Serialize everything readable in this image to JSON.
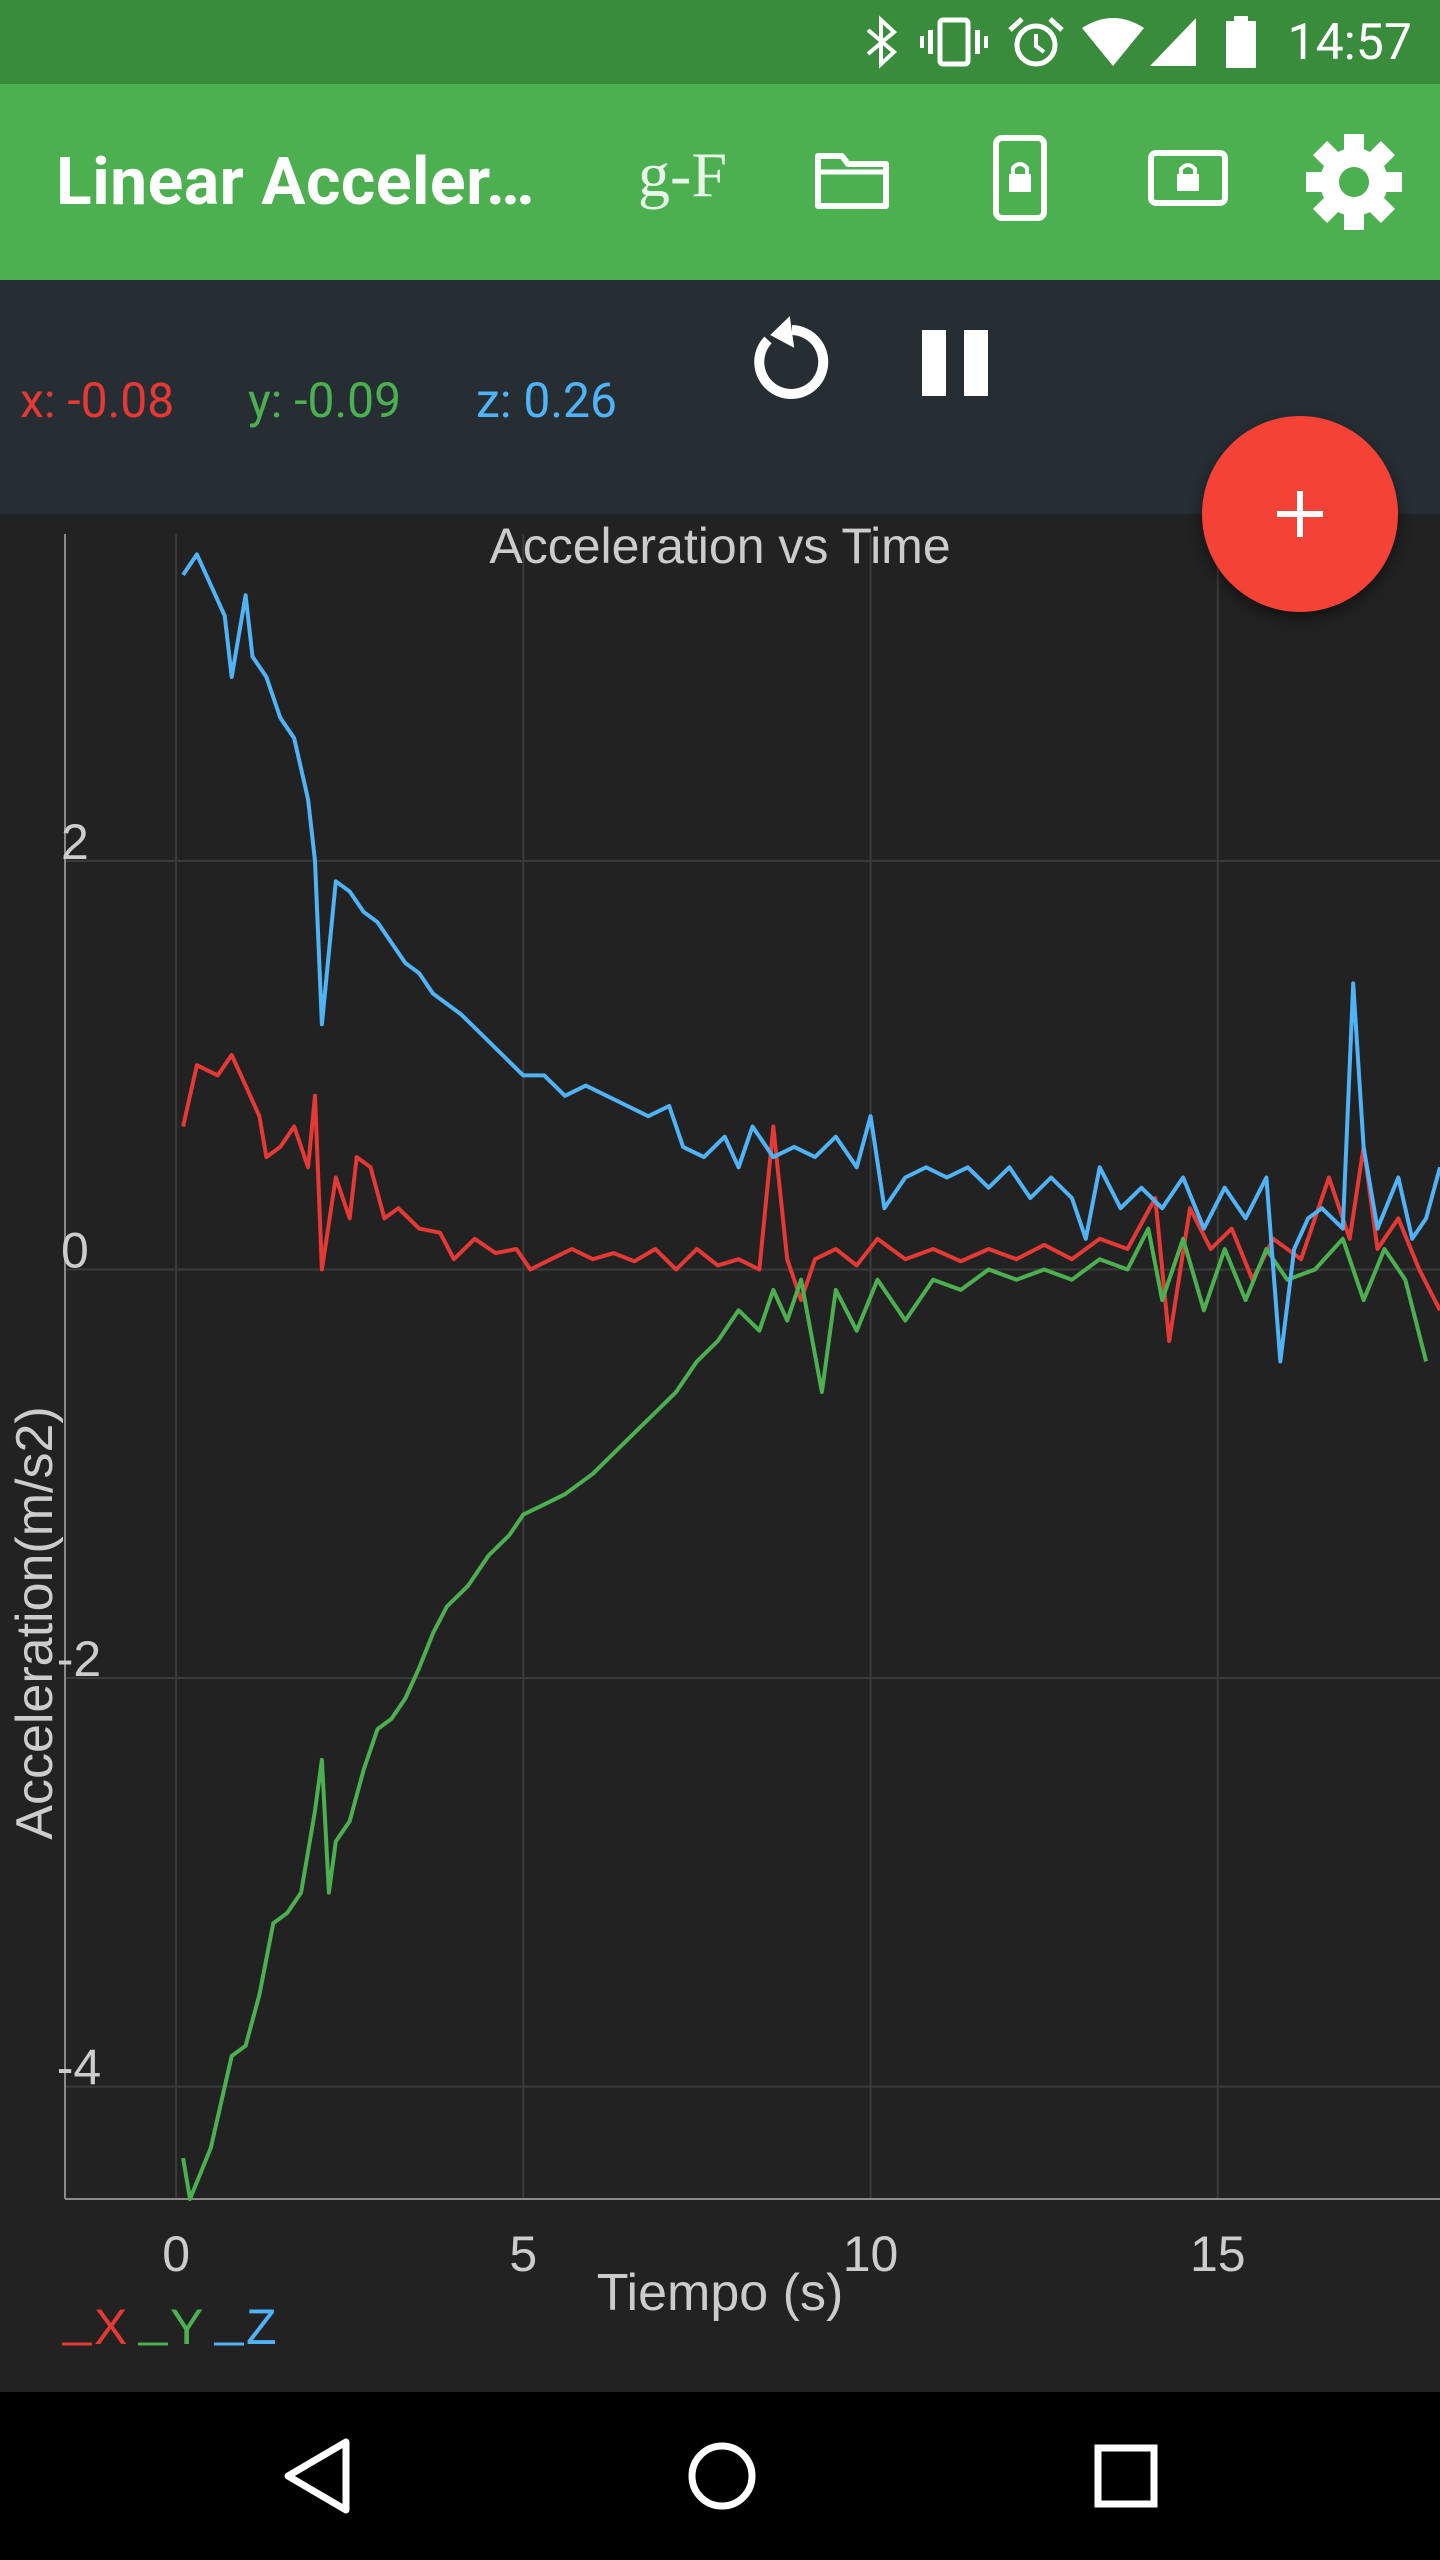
{
  "status_bar": {
    "time": "14:57",
    "icons": [
      "bluetooth-icon",
      "vibrate-icon",
      "alarm-icon",
      "wifi-icon",
      "signal-icon",
      "battery-icon"
    ]
  },
  "app_bar": {
    "title": "Linear Acceler…",
    "gf_label": "g-F",
    "actions": [
      "folder-icon",
      "phone-lock-icon",
      "screen-lock-icon",
      "settings-icon"
    ]
  },
  "readout": {
    "x_label": "x: -0.08",
    "y_label": "y: -0.09",
    "z_label": "z: 0.26",
    "controls": [
      "reset-icon",
      "pause-icon"
    ]
  },
  "fab": {
    "icon": "add-icon"
  },
  "colors": {
    "x": "#e53935",
    "y": "#4caf50",
    "z": "#4fb3f6"
  },
  "chart_data": {
    "type": "line",
    "title": "Acceleration vs Time",
    "xlabel": "Tiempo (s)",
    "ylabel": "Acceleration(m/s2)",
    "xlim": [
      -1.6,
      18.2
    ],
    "ylim": [
      -4.55,
      3.6
    ],
    "x_ticks": [
      0,
      5,
      10,
      15
    ],
    "y_ticks": [
      -4,
      -2,
      0,
      2
    ],
    "grid": true,
    "legend": [
      "X",
      "Y",
      "Z"
    ],
    "legend_position": "bottom-left",
    "series": [
      {
        "name": "X",
        "points": [
          [
            0.1,
            0.7
          ],
          [
            0.3,
            1.0
          ],
          [
            0.6,
            0.95
          ],
          [
            0.8,
            1.05
          ],
          [
            1.0,
            0.9
          ],
          [
            1.2,
            0.75
          ],
          [
            1.3,
            0.55
          ],
          [
            1.5,
            0.6
          ],
          [
            1.7,
            0.7
          ],
          [
            1.9,
            0.5
          ],
          [
            2.0,
            0.85
          ],
          [
            2.1,
            0.0
          ],
          [
            2.3,
            0.45
          ],
          [
            2.5,
            0.25
          ],
          [
            2.6,
            0.55
          ],
          [
            2.8,
            0.5
          ],
          [
            3.0,
            0.25
          ],
          [
            3.2,
            0.3
          ],
          [
            3.5,
            0.2
          ],
          [
            3.8,
            0.18
          ],
          [
            4.0,
            0.05
          ],
          [
            4.3,
            0.15
          ],
          [
            4.6,
            0.08
          ],
          [
            4.9,
            0.1
          ],
          [
            5.1,
            0.0
          ],
          [
            5.4,
            0.05
          ],
          [
            5.7,
            0.1
          ],
          [
            6.0,
            0.05
          ],
          [
            6.3,
            0.08
          ],
          [
            6.6,
            0.04
          ],
          [
            6.9,
            0.1
          ],
          [
            7.2,
            0.0
          ],
          [
            7.5,
            0.1
          ],
          [
            7.8,
            0.02
          ],
          [
            8.1,
            0.05
          ],
          [
            8.4,
            0.0
          ],
          [
            8.6,
            0.7
          ],
          [
            8.8,
            0.05
          ],
          [
            9.0,
            -0.15
          ],
          [
            9.2,
            0.05
          ],
          [
            9.5,
            0.1
          ],
          [
            9.8,
            0.02
          ],
          [
            10.1,
            0.15
          ],
          [
            10.5,
            0.05
          ],
          [
            10.9,
            0.1
          ],
          [
            11.3,
            0.04
          ],
          [
            11.7,
            0.1
          ],
          [
            12.1,
            0.05
          ],
          [
            12.5,
            0.12
          ],
          [
            12.9,
            0.05
          ],
          [
            13.3,
            0.15
          ],
          [
            13.7,
            0.1
          ],
          [
            14.1,
            0.35
          ],
          [
            14.3,
            -0.35
          ],
          [
            14.6,
            0.3
          ],
          [
            14.9,
            0.1
          ],
          [
            15.2,
            0.2
          ],
          [
            15.5,
            -0.05
          ],
          [
            15.8,
            0.15
          ],
          [
            16.2,
            0.05
          ],
          [
            16.6,
            0.45
          ],
          [
            16.9,
            0.15
          ],
          [
            17.1,
            0.6
          ],
          [
            17.3,
            0.1
          ],
          [
            17.6,
            0.25
          ],
          [
            17.9,
            0.0
          ],
          [
            18.2,
            -0.2
          ]
        ]
      },
      {
        "name": "Y",
        "points": [
          [
            0.1,
            -4.35
          ],
          [
            0.2,
            -4.55
          ],
          [
            0.5,
            -4.3
          ],
          [
            0.8,
            -3.85
          ],
          [
            1.0,
            -3.8
          ],
          [
            1.2,
            -3.55
          ],
          [
            1.4,
            -3.2
          ],
          [
            1.6,
            -3.15
          ],
          [
            1.8,
            -3.05
          ],
          [
            2.0,
            -2.65
          ],
          [
            2.1,
            -2.4
          ],
          [
            2.2,
            -3.05
          ],
          [
            2.3,
            -2.8
          ],
          [
            2.5,
            -2.7
          ],
          [
            2.7,
            -2.45
          ],
          [
            2.9,
            -2.25
          ],
          [
            3.1,
            -2.2
          ],
          [
            3.3,
            -2.1
          ],
          [
            3.5,
            -1.95
          ],
          [
            3.7,
            -1.78
          ],
          [
            3.9,
            -1.65
          ],
          [
            4.2,
            -1.55
          ],
          [
            4.5,
            -1.4
          ],
          [
            4.8,
            -1.3
          ],
          [
            5.0,
            -1.2
          ],
          [
            5.3,
            -1.15
          ],
          [
            5.6,
            -1.1
          ],
          [
            6.0,
            -1.0
          ],
          [
            6.3,
            -0.9
          ],
          [
            6.6,
            -0.8
          ],
          [
            6.9,
            -0.7
          ],
          [
            7.2,
            -0.6
          ],
          [
            7.5,
            -0.45
          ],
          [
            7.8,
            -0.35
          ],
          [
            8.1,
            -0.2
          ],
          [
            8.4,
            -0.3
          ],
          [
            8.6,
            -0.1
          ],
          [
            8.8,
            -0.25
          ],
          [
            9.0,
            -0.05
          ],
          [
            9.3,
            -0.6
          ],
          [
            9.5,
            -0.1
          ],
          [
            9.8,
            -0.3
          ],
          [
            10.1,
            -0.05
          ],
          [
            10.5,
            -0.25
          ],
          [
            10.9,
            -0.05
          ],
          [
            11.3,
            -0.1
          ],
          [
            11.7,
            0.0
          ],
          [
            12.1,
            -0.05
          ],
          [
            12.5,
            0.0
          ],
          [
            12.9,
            -0.05
          ],
          [
            13.3,
            0.05
          ],
          [
            13.7,
            0.0
          ],
          [
            14.0,
            0.2
          ],
          [
            14.2,
            -0.15
          ],
          [
            14.5,
            0.15
          ],
          [
            14.8,
            -0.2
          ],
          [
            15.1,
            0.1
          ],
          [
            15.4,
            -0.15
          ],
          [
            15.7,
            0.1
          ],
          [
            16.0,
            -0.05
          ],
          [
            16.4,
            0.0
          ],
          [
            16.8,
            0.15
          ],
          [
            17.1,
            -0.15
          ],
          [
            17.4,
            0.1
          ],
          [
            17.7,
            -0.05
          ],
          [
            18.0,
            -0.45
          ]
        ]
      },
      {
        "name": "Z",
        "points": [
          [
            0.1,
            3.4
          ],
          [
            0.3,
            3.5
          ],
          [
            0.5,
            3.35
          ],
          [
            0.7,
            3.2
          ],
          [
            0.8,
            2.9
          ],
          [
            1.0,
            3.3
          ],
          [
            1.1,
            3.0
          ],
          [
            1.3,
            2.9
          ],
          [
            1.5,
            2.7
          ],
          [
            1.7,
            2.6
          ],
          [
            1.9,
            2.3
          ],
          [
            2.0,
            2.0
          ],
          [
            2.1,
            1.2
          ],
          [
            2.3,
            1.9
          ],
          [
            2.5,
            1.85
          ],
          [
            2.7,
            1.75
          ],
          [
            2.9,
            1.7
          ],
          [
            3.1,
            1.6
          ],
          [
            3.3,
            1.5
          ],
          [
            3.5,
            1.45
          ],
          [
            3.7,
            1.35
          ],
          [
            3.9,
            1.3
          ],
          [
            4.1,
            1.25
          ],
          [
            4.4,
            1.15
          ],
          [
            4.7,
            1.05
          ],
          [
            5.0,
            0.95
          ],
          [
            5.3,
            0.95
          ],
          [
            5.6,
            0.85
          ],
          [
            5.9,
            0.9
          ],
          [
            6.2,
            0.85
          ],
          [
            6.5,
            0.8
          ],
          [
            6.8,
            0.75
          ],
          [
            7.1,
            0.8
          ],
          [
            7.3,
            0.6
          ],
          [
            7.6,
            0.55
          ],
          [
            7.9,
            0.65
          ],
          [
            8.1,
            0.5
          ],
          [
            8.3,
            0.7
          ],
          [
            8.6,
            0.55
          ],
          [
            8.9,
            0.6
          ],
          [
            9.2,
            0.55
          ],
          [
            9.5,
            0.65
          ],
          [
            9.8,
            0.5
          ],
          [
            10.0,
            0.75
          ],
          [
            10.2,
            0.3
          ],
          [
            10.5,
            0.45
          ],
          [
            10.8,
            0.5
          ],
          [
            11.1,
            0.45
          ],
          [
            11.4,
            0.5
          ],
          [
            11.7,
            0.4
          ],
          [
            12.0,
            0.5
          ],
          [
            12.3,
            0.35
          ],
          [
            12.6,
            0.45
          ],
          [
            12.9,
            0.35
          ],
          [
            13.1,
            0.15
          ],
          [
            13.3,
            0.5
          ],
          [
            13.6,
            0.3
          ],
          [
            13.9,
            0.4
          ],
          [
            14.2,
            0.3
          ],
          [
            14.5,
            0.45
          ],
          [
            14.8,
            0.2
          ],
          [
            15.1,
            0.4
          ],
          [
            15.4,
            0.25
          ],
          [
            15.7,
            0.45
          ],
          [
            15.9,
            -0.45
          ],
          [
            16.1,
            0.1
          ],
          [
            16.3,
            0.25
          ],
          [
            16.5,
            0.3
          ],
          [
            16.8,
            0.2
          ],
          [
            16.95,
            1.4
          ],
          [
            17.1,
            0.6
          ],
          [
            17.3,
            0.2
          ],
          [
            17.6,
            0.45
          ],
          [
            17.8,
            0.15
          ],
          [
            18.0,
            0.25
          ],
          [
            18.2,
            0.5
          ]
        ]
      }
    ]
  },
  "nav_bar": {
    "icons": [
      "back-icon",
      "home-icon",
      "recents-icon"
    ]
  }
}
